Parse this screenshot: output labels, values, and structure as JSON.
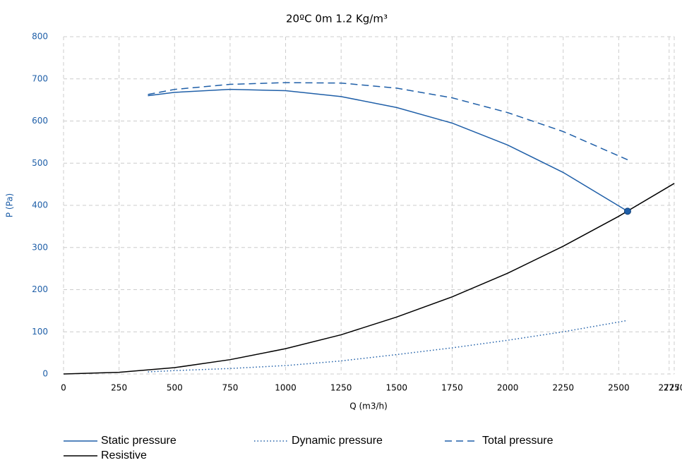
{
  "chart_data": {
    "type": "line",
    "title": "20ºC 0m 1.2 Kg/m³",
    "x_label": "Q (m3/h)",
    "y_label": "P (Pa)",
    "xlim": [
      0,
      2750
    ],
    "xticks": [
      0,
      250,
      500,
      750,
      1000,
      1250,
      1500,
      1750,
      2000,
      2250,
      2500,
      2727,
      2750
    ],
    "ylim": [
      0,
      800
    ],
    "yticks": [
      0,
      100,
      200,
      300,
      400,
      500,
      600,
      700,
      800
    ],
    "grid": true,
    "legend": "bottom",
    "series": [
      {
        "name": "Static pressure",
        "color": "#1f5fa8",
        "line_style": "solid",
        "x": [
          380,
          500,
          750,
          1000,
          1250,
          1500,
          1750,
          2000,
          2250,
          2540
        ],
        "values": [
          660,
          668,
          675,
          672,
          658,
          632,
          595,
          543,
          478,
          386
        ]
      },
      {
        "name": "Dynamic pressure",
        "color": "#1f5fa8",
        "line_style": "dotted",
        "x": [
          380,
          500,
          750,
          1000,
          1250,
          1500,
          1750,
          2000,
          2250,
          2540
        ],
        "values": [
          5,
          8,
          13,
          20,
          31,
          46,
          62,
          80,
          100,
          127
        ]
      },
      {
        "name": "Total pressure",
        "color": "#1f5fa8",
        "line_style": "dashed",
        "x": [
          380,
          500,
          750,
          1000,
          1250,
          1500,
          1750,
          2000,
          2250,
          2540
        ],
        "values": [
          663,
          675,
          687,
          691,
          690,
          678,
          655,
          620,
          575,
          508
        ]
      },
      {
        "name": "Resistive",
        "color": "#000000",
        "line_style": "solid",
        "x": [
          0,
          250,
          500,
          750,
          1000,
          1250,
          1500,
          1750,
          2000,
          2250,
          2500,
          2750
        ],
        "values": [
          0,
          4,
          15,
          34,
          60,
          93,
          135,
          183,
          239,
          303,
          374,
          452
        ]
      }
    ],
    "operating_point": {
      "x": 2540,
      "y": 386,
      "color": "#1f5fa8"
    }
  }
}
